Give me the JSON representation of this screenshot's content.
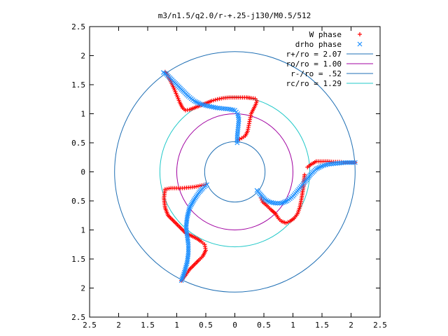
{
  "chart_data": {
    "type": "scatter",
    "title": "m3/n1.5/q2.0/r-+.25-j130/M0.5/512",
    "xlabel": "",
    "ylabel": "",
    "xlim": [
      -2.5,
      2.5
    ],
    "ylim": [
      -2.5,
      2.5
    ],
    "x_ticks": [
      -2.5,
      -2,
      -1.5,
      -1,
      -0.5,
      0,
      0.5,
      1,
      1.5,
      2,
      2.5
    ],
    "y_ticks": [
      -2.5,
      -2,
      -1.5,
      -1,
      -0.5,
      0,
      0.5,
      1,
      1.5,
      2,
      2.5
    ],
    "x_tick_labels": [
      "2.5",
      "2",
      "1.5",
      "1",
      "0.5",
      "0",
      "0.5",
      "1",
      "1.5",
      "2",
      "2.5"
    ],
    "y_tick_labels": [
      "2.5",
      "2",
      "1.5",
      "1",
      "0.5",
      "0",
      "0.5",
      "1",
      "1.5",
      "2",
      "2.5"
    ],
    "grid": false,
    "legend_position": "top-right",
    "series": [
      {
        "name": "W phase",
        "kind": "points",
        "marker": "plus",
        "color": "#ff0000",
        "arms": [
          {
            "points": [
              [
                0.05,
                0.55
              ],
              [
                0.12,
                0.58
              ],
              [
                0.18,
                0.62
              ],
              [
                0.22,
                0.7
              ],
              [
                0.24,
                0.8
              ],
              [
                0.26,
                0.9
              ],
              [
                0.28,
                1.0
              ],
              [
                0.32,
                1.08
              ],
              [
                0.36,
                1.16
              ],
              [
                0.38,
                1.22
              ],
              [
                0.35,
                1.26
              ],
              [
                0.28,
                1.27
              ],
              [
                0.2,
                1.28
              ],
              [
                0.1,
                1.28
              ],
              [
                0.0,
                1.28
              ],
              [
                -0.1,
                1.28
              ],
              [
                -0.2,
                1.27
              ],
              [
                -0.3,
                1.25
              ],
              [
                -0.4,
                1.22
              ],
              [
                -0.5,
                1.18
              ],
              [
                -0.6,
                1.14
              ],
              [
                -0.7,
                1.1
              ],
              [
                -0.78,
                1.07
              ],
              [
                -0.85,
                1.06
              ],
              [
                -0.9,
                1.1
              ],
              [
                -0.95,
                1.2
              ],
              [
                -1.0,
                1.32
              ],
              [
                -1.05,
                1.44
              ],
              [
                -1.1,
                1.55
              ],
              [
                -1.15,
                1.65
              ],
              [
                -1.2,
                1.72
              ]
            ]
          },
          {
            "points": [
              [
                1.25,
                0.08
              ],
              [
                1.3,
                0.12
              ],
              [
                1.35,
                0.15
              ],
              [
                1.4,
                0.18
              ],
              [
                1.5,
                0.18
              ],
              [
                1.6,
                0.18
              ],
              [
                1.7,
                0.17
              ],
              [
                1.8,
                0.17
              ],
              [
                1.9,
                0.16
              ],
              [
                2.0,
                0.16
              ],
              [
                2.07,
                0.16
              ],
              [
                1.2,
                -0.05
              ],
              [
                1.18,
                -0.25
              ],
              [
                1.15,
                -0.45
              ],
              [
                1.12,
                -0.6
              ],
              [
                1.08,
                -0.72
              ],
              [
                1.02,
                -0.8
              ],
              [
                0.95,
                -0.85
              ],
              [
                0.88,
                -0.88
              ],
              [
                0.8,
                -0.85
              ],
              [
                0.75,
                -0.8
              ],
              [
                0.7,
                -0.72
              ],
              [
                0.62,
                -0.65
              ],
              [
                0.55,
                -0.58
              ],
              [
                0.48,
                -0.52
              ],
              [
                0.45,
                -0.45
              ]
            ]
          },
          {
            "points": [
              [
                -0.5,
                -0.22
              ],
              [
                -0.6,
                -0.24
              ],
              [
                -0.7,
                -0.26
              ],
              [
                -0.8,
                -0.27
              ],
              [
                -0.9,
                -0.28
              ],
              [
                -1.0,
                -0.28
              ],
              [
                -1.1,
                -0.28
              ],
              [
                -1.2,
                -0.3
              ],
              [
                -1.22,
                -0.45
              ],
              [
                -1.2,
                -0.62
              ],
              [
                -1.15,
                -0.75
              ],
              [
                -1.05,
                -0.85
              ],
              [
                -0.95,
                -0.95
              ],
              [
                -0.85,
                -1.05
              ],
              [
                -0.75,
                -1.1
              ],
              [
                -0.65,
                -1.15
              ],
              [
                -0.58,
                -1.2
              ],
              [
                -0.52,
                -1.25
              ],
              [
                -0.5,
                -1.35
              ],
              [
                -0.55,
                -1.45
              ],
              [
                -0.62,
                -1.52
              ],
              [
                -0.7,
                -1.6
              ],
              [
                -0.78,
                -1.68
              ],
              [
                -0.85,
                -1.78
              ],
              [
                -0.92,
                -1.87
              ]
            ]
          }
        ]
      },
      {
        "name": "drho phase",
        "kind": "points",
        "marker": "cross",
        "color": "#1e90ff",
        "arms": [
          {
            "points": [
              [
                0.04,
                0.5
              ],
              [
                0.04,
                0.6
              ],
              [
                0.05,
                0.7
              ],
              [
                0.06,
                0.8
              ],
              [
                0.07,
                0.9
              ],
              [
                0.05,
                1.0
              ],
              [
                0.0,
                1.06
              ],
              [
                -0.1,
                1.08
              ],
              [
                -0.2,
                1.09
              ],
              [
                -0.3,
                1.1
              ],
              [
                -0.4,
                1.12
              ],
              [
                -0.5,
                1.14
              ],
              [
                -0.6,
                1.17
              ],
              [
                -0.7,
                1.22
              ],
              [
                -0.8,
                1.3
              ],
              [
                -0.9,
                1.4
              ],
              [
                -1.0,
                1.5
              ],
              [
                -1.1,
                1.6
              ],
              [
                -1.18,
                1.68
              ],
              [
                -1.23,
                1.71
              ]
            ]
          },
          {
            "points": [
              [
                0.38,
                -0.32
              ],
              [
                0.45,
                -0.4
              ],
              [
                0.52,
                -0.48
              ],
              [
                0.6,
                -0.52
              ],
              [
                0.7,
                -0.54
              ],
              [
                0.8,
                -0.54
              ],
              [
                0.9,
                -0.5
              ],
              [
                1.0,
                -0.42
              ],
              [
                1.1,
                -0.3
              ],
              [
                1.2,
                -0.18
              ],
              [
                1.3,
                -0.05
              ],
              [
                1.4,
                0.05
              ],
              [
                1.5,
                0.1
              ],
              [
                1.6,
                0.13
              ],
              [
                1.7,
                0.14
              ],
              [
                1.8,
                0.15
              ],
              [
                1.9,
                0.16
              ],
              [
                2.0,
                0.16
              ],
              [
                2.07,
                0.16
              ]
            ]
          },
          {
            "points": [
              [
                -0.48,
                -0.22
              ],
              [
                -0.55,
                -0.28
              ],
              [
                -0.62,
                -0.36
              ],
              [
                -0.7,
                -0.48
              ],
              [
                -0.78,
                -0.62
              ],
              [
                -0.82,
                -0.78
              ],
              [
                -0.84,
                -0.95
              ],
              [
                -0.82,
                -1.1
              ],
              [
                -0.8,
                -1.25
              ],
              [
                -0.8,
                -1.4
              ],
              [
                -0.82,
                -1.55
              ],
              [
                -0.86,
                -1.7
              ],
              [
                -0.9,
                -1.82
              ],
              [
                -0.92,
                -1.87
              ]
            ]
          }
        ]
      },
      {
        "name": "r+/ro = 2.07",
        "kind": "circle",
        "radius": 2.07,
        "color": "#1f6fb4"
      },
      {
        "name": "ro/ro = 1.00",
        "kind": "circle",
        "radius": 1.0,
        "color": "#a000a0"
      },
      {
        "name": "r-/ro = .52",
        "kind": "circle",
        "radius": 0.52,
        "color": "#1f6fb4"
      },
      {
        "name": "rc/ro = 1.29",
        "kind": "circle",
        "radius": 1.29,
        "color": "#20c8c8"
      }
    ]
  }
}
